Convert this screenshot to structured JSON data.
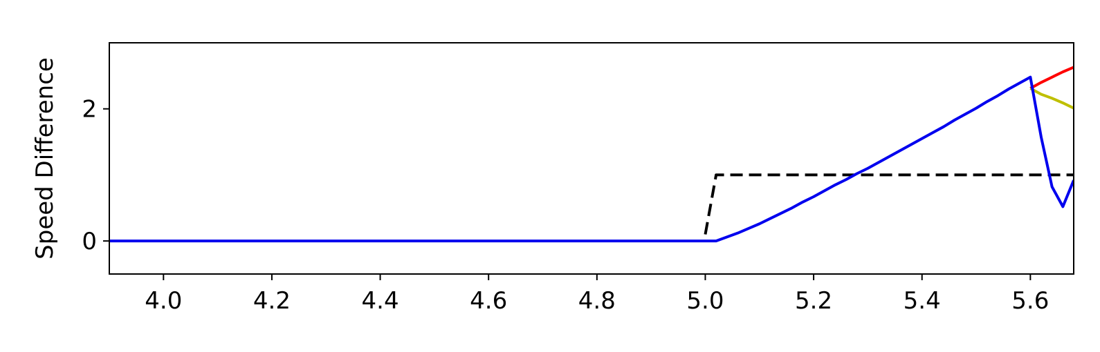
{
  "chart_data": {
    "type": "line",
    "title": "",
    "xlabel": "",
    "ylabel": "Speed Difference",
    "xlim": [
      3.9,
      5.68
    ],
    "ylim": [
      -0.5,
      3.0
    ],
    "xticks": [
      4.0,
      4.2,
      4.4,
      4.6,
      4.8,
      5.0,
      5.2,
      5.4,
      5.6
    ],
    "xtick_labels": [
      "4.0",
      "4.2",
      "4.4",
      "4.6",
      "4.8",
      "5.0",
      "5.2",
      "5.4",
      "5.6"
    ],
    "yticks": [
      0,
      2
    ],
    "ytick_labels": [
      "0",
      "2"
    ],
    "grid": false,
    "legend": false,
    "series": [
      {
        "color": "#000000",
        "style": "dashed",
        "x": [
          5.0,
          5.02,
          5.68
        ],
        "y": [
          0.1,
          1.0,
          1.0
        ]
      },
      {
        "color": "#ff0000",
        "style": "solid",
        "x": [
          5.6,
          5.62,
          5.64,
          5.66,
          5.68
        ],
        "y": [
          2.31,
          2.4,
          2.48,
          2.56,
          2.63
        ]
      },
      {
        "color": "#bfbf00",
        "style": "solid",
        "x": [
          5.6,
          5.62,
          5.64,
          5.66,
          5.68
        ],
        "y": [
          2.31,
          2.22,
          2.16,
          2.09,
          2.01
        ]
      },
      {
        "color": "#0000ee",
        "style": "solid",
        "x": [
          3.9,
          4.0,
          4.2,
          4.4,
          4.6,
          4.8,
          5.0,
          5.02,
          5.04,
          5.06,
          5.08,
          5.1,
          5.12,
          5.14,
          5.16,
          5.18,
          5.2,
          5.22,
          5.24,
          5.26,
          5.28,
          5.3,
          5.32,
          5.34,
          5.36,
          5.38,
          5.4,
          5.42,
          5.44,
          5.46,
          5.48,
          5.5,
          5.52,
          5.54,
          5.56,
          5.58,
          5.6,
          5.62,
          5.64,
          5.66,
          5.68
        ],
        "y": [
          0,
          0,
          0,
          0,
          0,
          0,
          0,
          0,
          0.06,
          0.12,
          0.19,
          0.26,
          0.34,
          0.42,
          0.5,
          0.59,
          0.67,
          0.76,
          0.85,
          0.93,
          1.02,
          1.1,
          1.19,
          1.28,
          1.37,
          1.46,
          1.55,
          1.64,
          1.73,
          1.83,
          1.92,
          2.01,
          2.11,
          2.2,
          2.3,
          2.39,
          2.48,
          1.57,
          0.82,
          0.52,
          0.92
        ]
      }
    ]
  }
}
